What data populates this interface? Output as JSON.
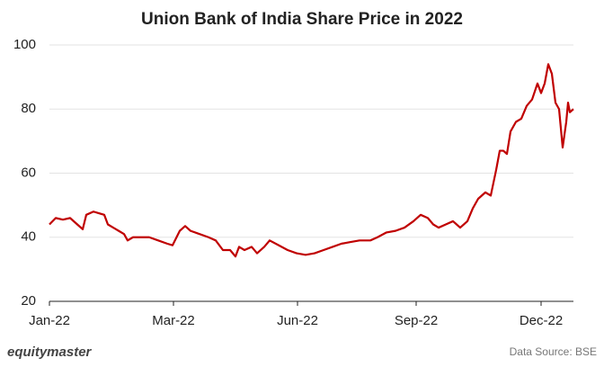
{
  "chart_data": {
    "type": "line",
    "title": "Union Bank of India Share Price in 2022",
    "source": "Data Source: BSE",
    "brand": "equitymaster",
    "x": [
      0,
      7,
      15,
      23,
      31,
      37,
      41,
      49,
      55,
      61,
      65,
      71,
      77,
      83,
      87,
      93,
      101,
      111,
      121,
      131,
      137,
      145,
      151,
      157,
      167,
      177,
      185,
      193,
      201,
      207,
      211,
      217,
      225,
      231,
      239,
      245,
      255,
      265,
      275,
      285,
      295,
      305,
      315,
      325,
      335,
      345,
      357,
      365,
      375,
      385,
      395,
      405,
      413,
      421,
      427,
      433,
      441,
      449,
      457,
      465,
      471,
      477,
      485,
      491,
      497,
      501,
      505,
      509,
      513,
      519,
      525,
      531,
      537,
      543,
      547,
      551,
      555,
      559,
      563,
      567,
      571,
      575,
      577,
      579,
      583
    ],
    "series": [
      {
        "name": "Share Price",
        "color": "#c00000",
        "values": [
          44,
          46,
          45.5,
          46,
          44,
          42.5,
          47,
          48,
          47.5,
          47,
          44,
          43,
          42,
          41,
          39,
          40,
          40,
          40,
          39,
          38,
          37.5,
          42,
          43.5,
          42,
          41,
          40,
          39,
          36,
          36,
          34,
          37,
          36,
          37,
          35,
          37,
          39,
          37.5,
          36,
          35,
          34.5,
          35,
          36,
          37,
          38,
          38.5,
          39,
          39,
          40,
          41.5,
          42,
          43,
          45,
          47,
          46,
          44,
          43,
          44,
          45,
          43,
          45,
          49,
          52,
          54,
          53,
          61,
          67,
          67,
          66,
          73,
          76,
          77,
          81,
          83,
          88,
          85,
          88,
          94,
          91,
          82,
          80,
          68,
          76,
          82,
          79,
          80
        ]
      }
    ],
    "xlim": [
      0,
      583
    ],
    "xticks": [
      {
        "value": 0,
        "label": "Jan-22"
      },
      {
        "value": 138,
        "label": "Mar-22"
      },
      {
        "value": 276,
        "label": "Jun-22"
      },
      {
        "value": 408,
        "label": "Sep-22"
      },
      {
        "value": 547,
        "label": "Dec-22"
      }
    ],
    "ylim": [
      20,
      100
    ],
    "yticks": [
      20,
      40,
      60,
      80,
      100
    ],
    "grid": true
  }
}
